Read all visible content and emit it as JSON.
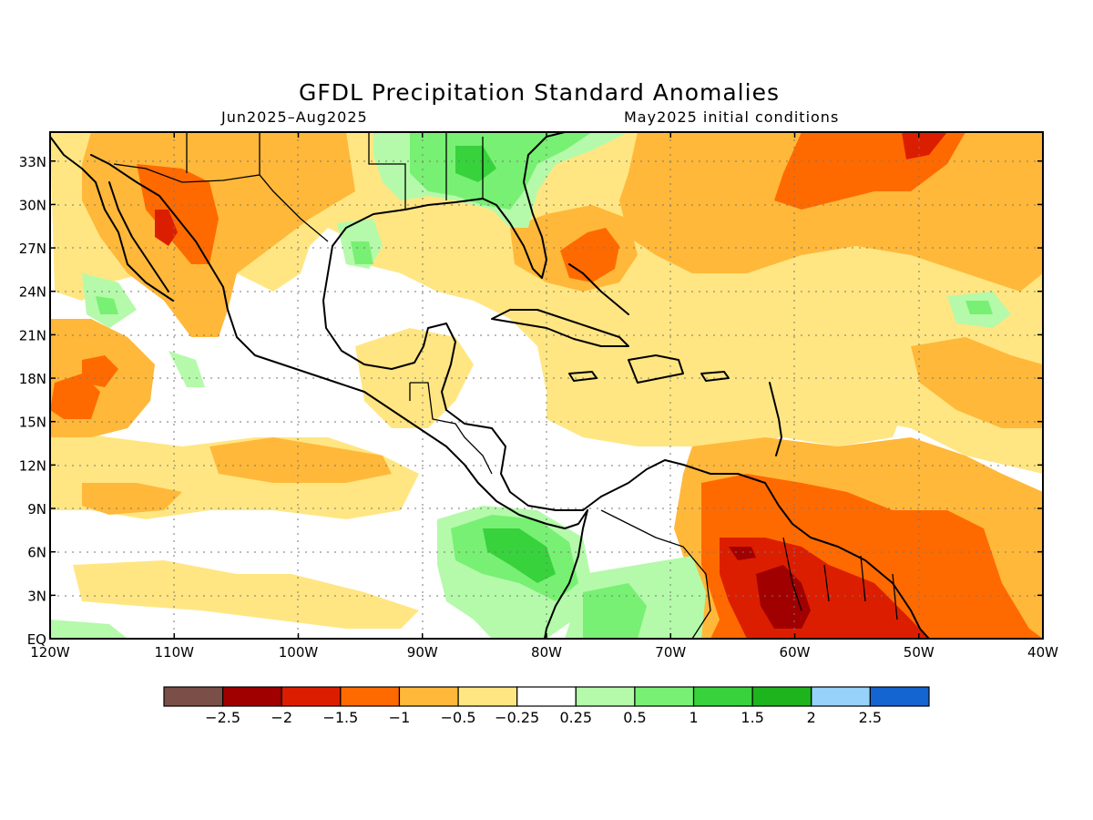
{
  "title": "GFDL Precipitation Standard Anomalies",
  "subtitle_left": "Jun2025–Aug2025",
  "subtitle_right": "May2025 initial conditions",
  "map": {
    "lon_range": [
      -120,
      -40
    ],
    "lat_range": [
      0,
      35
    ],
    "x_ticks": [
      "120W",
      "110W",
      "100W",
      "90W",
      "80W",
      "70W",
      "60W",
      "50W",
      "40W"
    ],
    "y_ticks": [
      "EQ",
      "3N",
      "6N",
      "9N",
      "12N",
      "15N",
      "18N",
      "21N",
      "24N",
      "27N",
      "30N",
      "33N"
    ],
    "grid": "dotted"
  },
  "colorbar": {
    "colors": [
      "#7a4f48",
      "#a00000",
      "#dc1e00",
      "#ff6a00",
      "#ffb83a",
      "#ffe682",
      "#ffffff",
      "#b4faaa",
      "#78f073",
      "#37d23c",
      "#1eb41e",
      "#96d2fa",
      "#1464d2"
    ],
    "labels": [
      "−2.5",
      "−2",
      "−1.5",
      "−1",
      "−0.5",
      "−0.25",
      "0.25",
      "0.5",
      "1",
      "1.5",
      "2",
      "2.5"
    ]
  }
}
